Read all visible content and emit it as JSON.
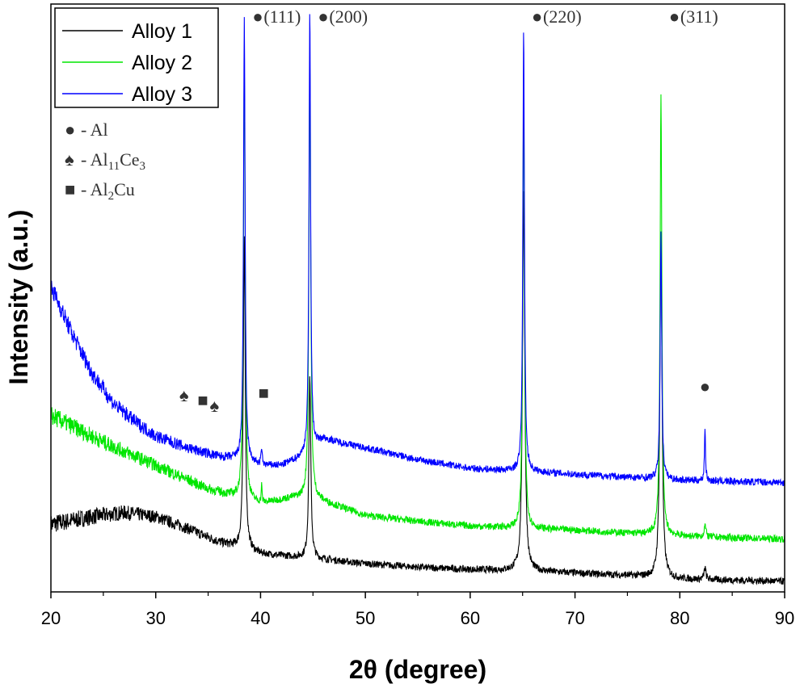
{
  "chart_data": {
    "type": "line",
    "xlabel": "2θ (degree)",
    "ylabel": "Intensity (a.u.)",
    "xlim": [
      20,
      90
    ],
    "xticks": [
      20,
      30,
      40,
      50,
      60,
      70,
      80,
      90
    ],
    "y_ticks_shown": false,
    "legend_position": "top-left",
    "series": [
      {
        "name": "Alloy 1",
        "color": "#000000",
        "baseline": [
          [
            20,
            0.115
          ],
          [
            24,
            0.128
          ],
          [
            27,
            0.135
          ],
          [
            30,
            0.128
          ],
          [
            33,
            0.108
          ],
          [
            36,
            0.085
          ],
          [
            38,
            0.075
          ],
          [
            40,
            0.065
          ],
          [
            43,
            0.06
          ],
          [
            45,
            0.057
          ],
          [
            50,
            0.048
          ],
          [
            55,
            0.042
          ],
          [
            60,
            0.038
          ],
          [
            65,
            0.036
          ],
          [
            70,
            0.032
          ],
          [
            75,
            0.028
          ],
          [
            80,
            0.022
          ],
          [
            85,
            0.02
          ],
          [
            90,
            0.018
          ]
        ],
        "peaks": [
          {
            "two_theta": 38.45,
            "height": 0.53,
            "width": 0.22
          },
          {
            "two_theta": 44.7,
            "height": 0.31,
            "width": 0.22
          },
          {
            "two_theta": 65.1,
            "height": 0.65,
            "width": 0.25
          },
          {
            "two_theta": 78.2,
            "height": 0.58,
            "width": 0.25
          },
          {
            "two_theta": 82.4,
            "height": 0.02,
            "width": 0.2
          }
        ]
      },
      {
        "name": "Alloy 2",
        "color": "#00e600",
        "baseline": [
          [
            20,
            0.3
          ],
          [
            25,
            0.255
          ],
          [
            30,
            0.215
          ],
          [
            35,
            0.175
          ],
          [
            37,
            0.165
          ],
          [
            40,
            0.15
          ],
          [
            43,
            0.16
          ],
          [
            45,
            0.16
          ],
          [
            50,
            0.13
          ],
          [
            55,
            0.12
          ],
          [
            60,
            0.112
          ],
          [
            65,
            0.108
          ],
          [
            70,
            0.105
          ],
          [
            75,
            0.1
          ],
          [
            80,
            0.095
          ],
          [
            85,
            0.092
          ],
          [
            90,
            0.09
          ]
        ],
        "peaks": [
          {
            "two_theta": 38.45,
            "height": 0.75,
            "width": 0.2
          },
          {
            "two_theta": 40.1,
            "height": 0.03,
            "width": 0.1
          },
          {
            "two_theta": 44.7,
            "height": 0.75,
            "width": 0.2
          },
          {
            "two_theta": 65.1,
            "height": 0.75,
            "width": 0.2
          },
          {
            "two_theta": 78.2,
            "height": 0.75,
            "width": 0.2
          },
          {
            "two_theta": 82.4,
            "height": 0.02,
            "width": 0.2
          }
        ]
      },
      {
        "name": "Alloy 3",
        "color": "#0000ff",
        "baseline": [
          [
            20,
            0.52
          ],
          [
            22,
            0.44
          ],
          [
            24,
            0.37
          ],
          [
            26,
            0.32
          ],
          [
            28,
            0.29
          ],
          [
            30,
            0.265
          ],
          [
            33,
            0.245
          ],
          [
            36,
            0.23
          ],
          [
            38,
            0.225
          ],
          [
            40,
            0.215
          ],
          [
            42,
            0.215
          ],
          [
            44,
            0.23
          ],
          [
            46,
            0.26
          ],
          [
            50,
            0.245
          ],
          [
            55,
            0.225
          ],
          [
            60,
            0.21
          ],
          [
            65,
            0.205
          ],
          [
            70,
            0.2
          ],
          [
            75,
            0.195
          ],
          [
            80,
            0.19
          ],
          [
            85,
            0.188
          ],
          [
            90,
            0.186
          ]
        ],
        "peaks": [
          {
            "two_theta": 38.45,
            "height": 0.75,
            "width": 0.18
          },
          {
            "two_theta": 40.1,
            "height": 0.03,
            "width": 0.12
          },
          {
            "two_theta": 44.7,
            "height": 0.75,
            "width": 0.18
          },
          {
            "two_theta": 65.1,
            "height": 0.75,
            "width": 0.18
          },
          {
            "two_theta": 78.2,
            "height": 0.42,
            "width": 0.18
          },
          {
            "two_theta": 82.4,
            "height": 0.09,
            "width": 0.12
          }
        ]
      }
    ],
    "phase_legend": [
      {
        "symbol": "●",
        "label": "- Al"
      },
      {
        "symbol": "♠",
        "label": "- Al",
        "sub1": "11",
        "mid": "Ce",
        "sub2": "3"
      },
      {
        "symbol": "■",
        "label": "- Al",
        "sub1": "2",
        "mid": "Cu",
        "sub2": ""
      }
    ],
    "peak_annotations": [
      {
        "symbol": "●",
        "text": "(111)",
        "two_theta": 38.45
      },
      {
        "symbol": "●",
        "text": "(200)",
        "two_theta": 44.7
      },
      {
        "symbol": "●",
        "text": "(220)",
        "two_theta": 65.1
      },
      {
        "symbol": "●",
        "text": "(311)",
        "two_theta": 78.2
      }
    ],
    "phase_markers": [
      {
        "symbol": "♠",
        "two_theta": 32.7
      },
      {
        "symbol": "■",
        "two_theta": 34.5
      },
      {
        "symbol": "♠",
        "two_theta": 35.6
      },
      {
        "symbol": "■",
        "two_theta": 40.3
      },
      {
        "symbol": "●",
        "two_theta": 82.4
      }
    ]
  }
}
